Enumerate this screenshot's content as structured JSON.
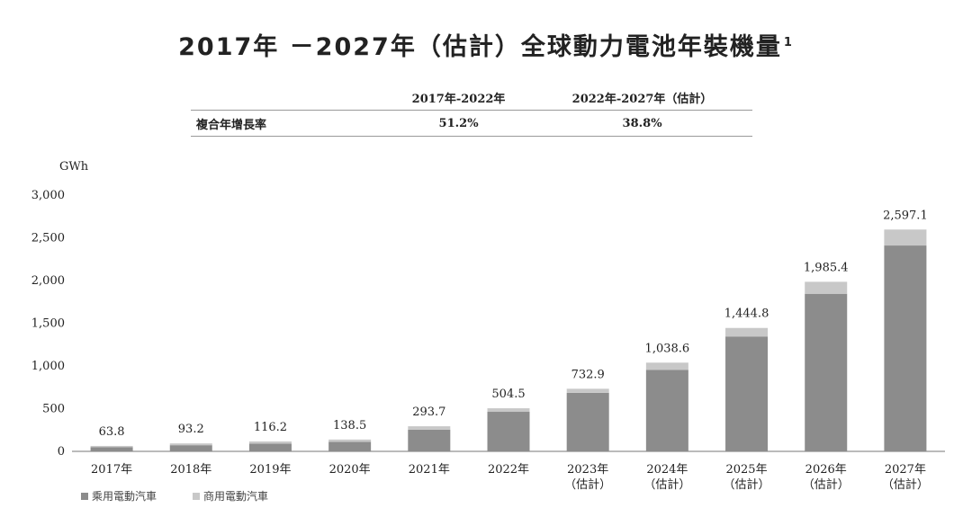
{
  "chart_data": {
    "type": "bar",
    "stacked": true,
    "title": "2017年 －2027年（估計）全球動力電池年裝機量",
    "title_sup": "1",
    "ylabel": "GWh",
    "ylim": [
      0,
      3000
    ],
    "yticks": [
      "0",
      "500",
      "1,000",
      "1,500",
      "2,000",
      "2,500",
      "3,000"
    ],
    "ytick_values": [
      0,
      500,
      1000,
      1500,
      2000,
      2500,
      3000
    ],
    "categories": [
      "2017年",
      "2018年",
      "2019年",
      "2020年",
      "2021年",
      "2022年",
      "2023年",
      "2024年",
      "2025年",
      "2026年",
      "2027年"
    ],
    "category_sublabels": [
      "",
      "",
      "",
      "",
      "",
      "",
      "（估計）",
      "（估計）",
      "（估計）",
      "（估計）",
      "（估計）"
    ],
    "series": [
      {
        "name": "乘用電動汽車",
        "color": "#8c8c8c",
        "values": [
          50,
          72,
          90,
          112,
          253,
          463,
          685,
          955,
          1345,
          1845,
          2410
        ]
      },
      {
        "name": "商用電動汽車",
        "color": "#c8c8c8",
        "values": [
          13.8,
          21.2,
          26.2,
          26.5,
          40.7,
          41.5,
          47.9,
          83.6,
          99.8,
          140.4,
          187.1
        ]
      }
    ],
    "totals": [
      63.8,
      93.2,
      116.2,
      138.5,
      293.7,
      504.5,
      732.9,
      1038.6,
      1444.8,
      1985.4,
      2597.1
    ],
    "total_labels": [
      "63.8",
      "93.2",
      "116.2",
      "138.5",
      "293.7",
      "504.5",
      "732.9",
      "1,038.6",
      "1,444.8",
      "1,985.4",
      "2,597.1"
    ],
    "legend_position": "bottom-left",
    "grid": false
  },
  "cagr_table": {
    "headers": [
      "",
      "2017年-2022年",
      "2022年-2027年（估計）"
    ],
    "row_label": "複合年增長率",
    "values": [
      "51.2%",
      "38.8%"
    ]
  }
}
